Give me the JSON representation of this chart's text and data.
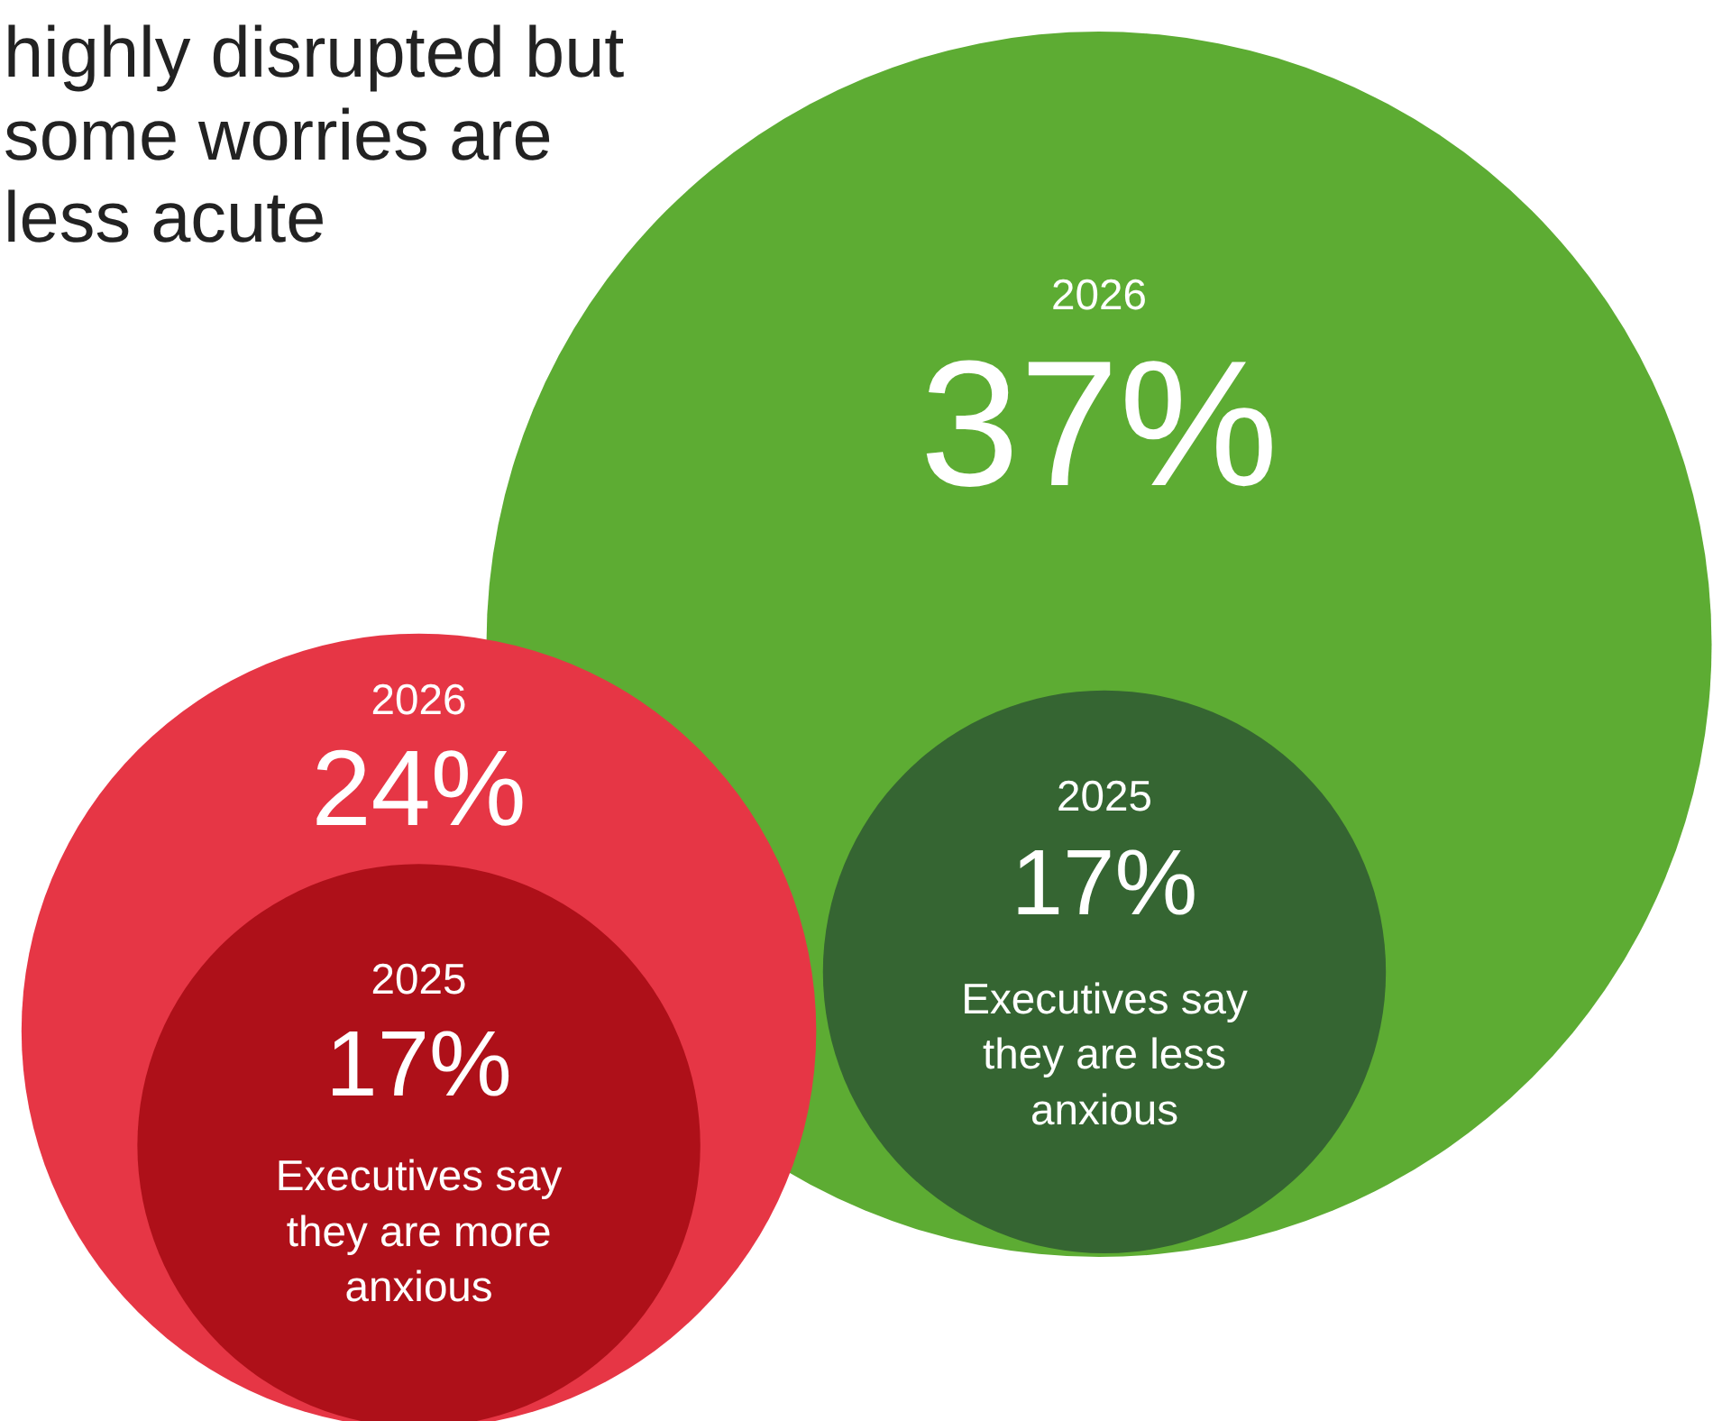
{
  "chart_data": {
    "type": "other",
    "title": "highly disrupted but some worries are less acute",
    "categories": [
      "2026",
      "2025",
      "2026",
      "2025"
    ],
    "values": [
      24,
      17,
      37,
      17
    ],
    "value_labels": [
      "24%",
      "17%",
      "37%",
      "17%"
    ],
    "colors": [
      "#e63645",
      "#ae1019",
      "#5dac33",
      "#356532"
    ],
    "annotations": [
      "Executives say they are more anxious",
      "Executives say they are less anxious"
    ]
  }
}
